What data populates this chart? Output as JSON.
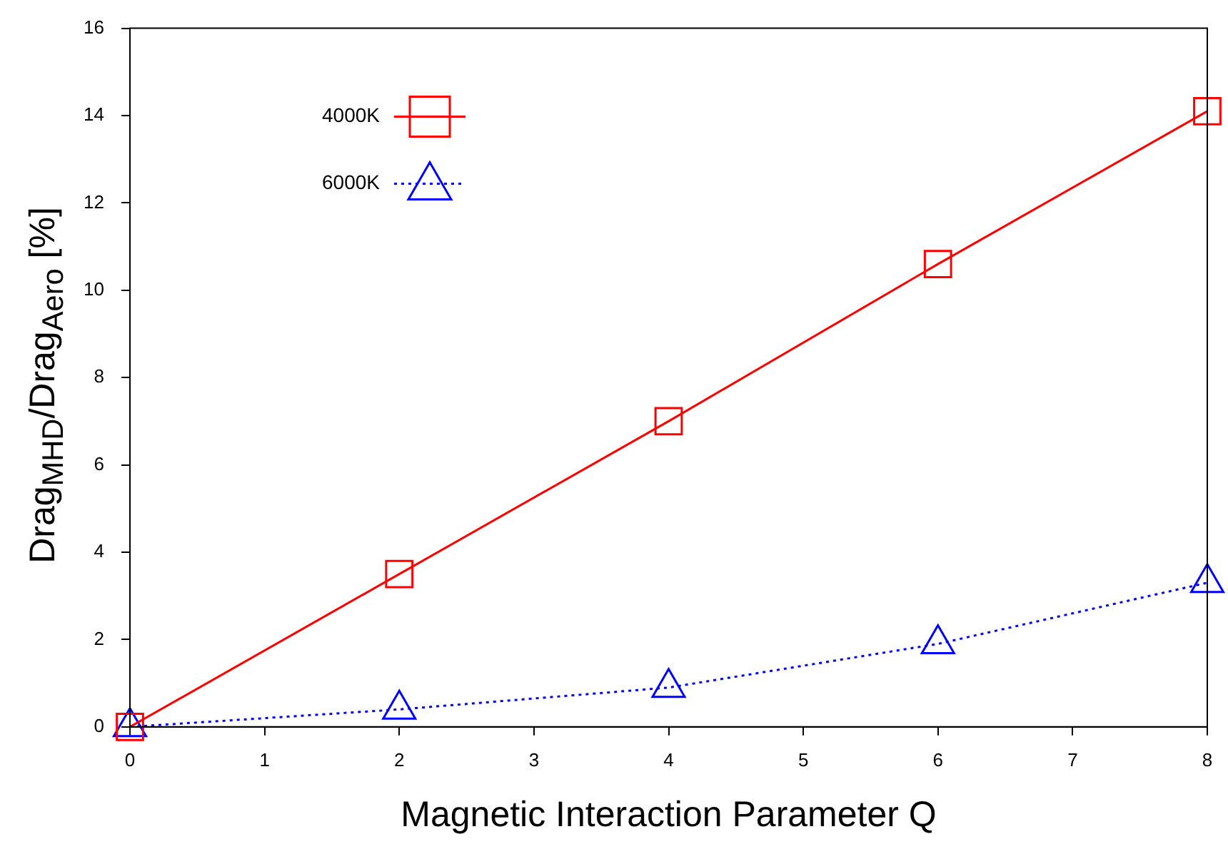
{
  "chart_data": {
    "type": "line",
    "xlabel": "Magnetic Interaction Parameter Q",
    "ylabel": "Drag$_{MHD}$/Drag$_{Aero}$  [%]",
    "x": [
      0,
      2,
      4,
      6,
      8
    ],
    "series": [
      {
        "name": "4000K",
        "color": "#ff0000",
        "values": [
          0,
          3.5,
          7.0,
          10.6,
          14.1
        ],
        "marker": "square",
        "line_style": "solid"
      },
      {
        "name": "6000K",
        "color": "#0000ff",
        "values": [
          0,
          0.4,
          0.9,
          1.9,
          3.3
        ],
        "marker": "triangle",
        "line_style": "dotted"
      }
    ],
    "xlim": [
      0,
      8
    ],
    "xticks": [
      0,
      1,
      2,
      3,
      4,
      5,
      6,
      7,
      8
    ],
    "ylim": [
      0,
      16
    ],
    "yticks": [
      0,
      2,
      4,
      6,
      8,
      10,
      12,
      14,
      16
    ],
    "grid": false,
    "legend": "top left"
  }
}
